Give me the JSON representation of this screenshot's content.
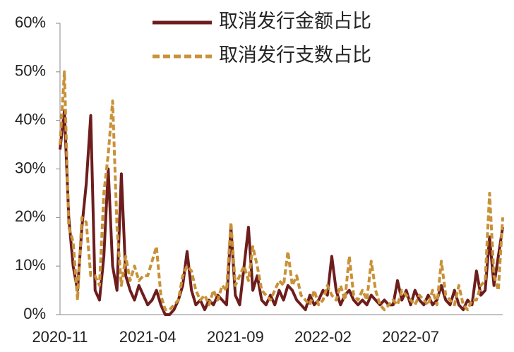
{
  "chart_data": {
    "type": "line",
    "categories": [
      "2020-11",
      null,
      null,
      null,
      null,
      null,
      null,
      null,
      null,
      null,
      null,
      null,
      null,
      null,
      null,
      null,
      null,
      null,
      null,
      null,
      "2021-04",
      null,
      null,
      null,
      null,
      null,
      null,
      null,
      null,
      null,
      null,
      null,
      null,
      null,
      null,
      null,
      null,
      null,
      null,
      null,
      "2021-09",
      null,
      null,
      null,
      null,
      null,
      null,
      null,
      null,
      null,
      null,
      null,
      null,
      null,
      null,
      null,
      null,
      null,
      null,
      null,
      "2022-02",
      null,
      null,
      null,
      null,
      null,
      null,
      null,
      null,
      null,
      null,
      null,
      null,
      null,
      null,
      null,
      null,
      null,
      null,
      null,
      "2022-07",
      null,
      null,
      null,
      null,
      null,
      null,
      null,
      null,
      null,
      null,
      null,
      null,
      null,
      null,
      null,
      null,
      null,
      null,
      null,
      null,
      null
    ],
    "series": [
      {
        "name": "取消发行金额占比",
        "color": "#6e1d1d",
        "dashed": false,
        "values": [
          34,
          42,
          20,
          10,
          5,
          18,
          27,
          41,
          5,
          3,
          12,
          30,
          10,
          5,
          29,
          8,
          5,
          3,
          6,
          4,
          2,
          3,
          5,
          2,
          0,
          0,
          1,
          3,
          6,
          13,
          5,
          2,
          3,
          1,
          3,
          2,
          4,
          3,
          2,
          18,
          4,
          2,
          10,
          18,
          5,
          8,
          3,
          2,
          4,
          2,
          5,
          3,
          6,
          5,
          3,
          2,
          1,
          4,
          2,
          3,
          5,
          4,
          12,
          5,
          2,
          4,
          5,
          3,
          2,
          3,
          2,
          4,
          3,
          2,
          3,
          2,
          2,
          7,
          3,
          5,
          2,
          5,
          3,
          2,
          4,
          2,
          3,
          6,
          3,
          2,
          5,
          2,
          1,
          3,
          2,
          9,
          4,
          5,
          16,
          6,
          12,
          18
        ]
      },
      {
        "name": "取消发行支数占比",
        "color": "#c99138",
        "dashed": true,
        "values": [
          35,
          50,
          18,
          15,
          3,
          20,
          19,
          8,
          8,
          6,
          25,
          33,
          44,
          18,
          6,
          12,
          7,
          10,
          7,
          8,
          8,
          11,
          14,
          4,
          1,
          1,
          2,
          3,
          8,
          10,
          9,
          5,
          3,
          4,
          2,
          5,
          3,
          6,
          5,
          19,
          6,
          8,
          10,
          7,
          14,
          10,
          5,
          4,
          3,
          5,
          7,
          6,
          13,
          6,
          8,
          4,
          3,
          2,
          5,
          2,
          3,
          6,
          4,
          3,
          6,
          3,
          12,
          4,
          3,
          5,
          3,
          11,
          5,
          2,
          1,
          2,
          3,
          2,
          5,
          4,
          3,
          2,
          4,
          3,
          2,
          5,
          2,
          11,
          4,
          3,
          2,
          6,
          2,
          1,
          3,
          3,
          6,
          7,
          25,
          8,
          5,
          20
        ]
      }
    ],
    "ylim": [
      0,
      60
    ],
    "yticks": [
      {
        "value": 0,
        "label": "0%"
      },
      {
        "value": 10,
        "label": "10%"
      },
      {
        "value": 20,
        "label": "20%"
      },
      {
        "value": 30,
        "label": "30%"
      },
      {
        "value": 40,
        "label": "40%"
      },
      {
        "value": 50,
        "label": "50%"
      },
      {
        "value": 60,
        "label": "60%"
      }
    ],
    "legend": "top"
  }
}
